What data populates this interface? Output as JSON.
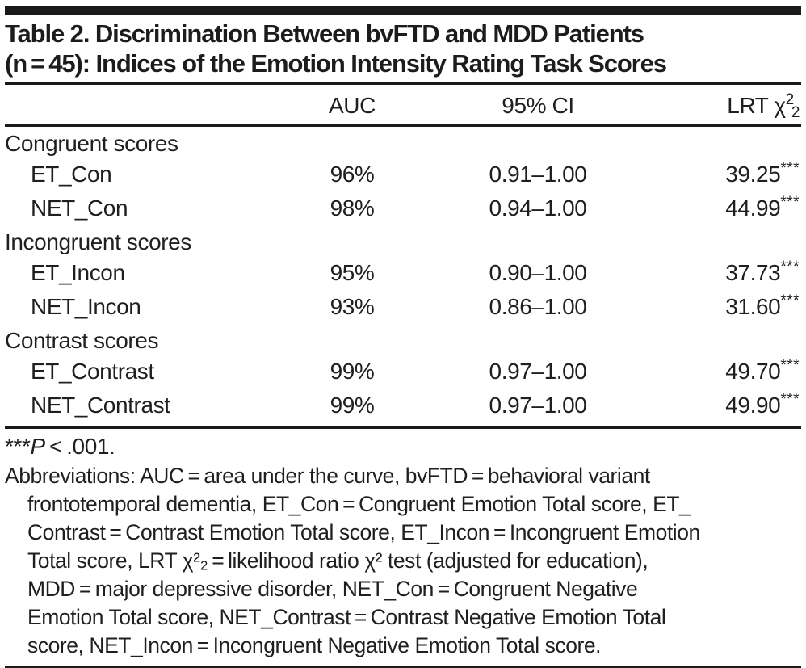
{
  "colors": {
    "text": "#1f1f1f",
    "rule": "#1a1a1a",
    "background": "#ffffff"
  },
  "title": {
    "line1": "Table 2. Discrimination Between bvFTD and MDD Patients",
    "line2": "(n = 45): Indices of the Emotion Intensity Rating Task Scores"
  },
  "table": {
    "headers": {
      "stub": "",
      "auc": "AUC",
      "ci": "95% CI",
      "lrt_prefix": "LRT χ",
      "lrt_sup": "2",
      "lrt_sub": "2"
    },
    "sections": [
      {
        "label": "Congruent scores",
        "rows": [
          {
            "label": "ET_Con",
            "auc": "96%",
            "ci": "0.91–1.00",
            "lrt": "39.25",
            "stars": "***"
          },
          {
            "label": "NET_Con",
            "auc": "98%",
            "ci": "0.94–1.00",
            "lrt": "44.99",
            "stars": "***"
          }
        ]
      },
      {
        "label": "Incongruent scores",
        "rows": [
          {
            "label": "ET_Incon",
            "auc": "95%",
            "ci": "0.90–1.00",
            "lrt": "37.73",
            "stars": "***"
          },
          {
            "label": "NET_Incon",
            "auc": "93%",
            "ci": "0.86–1.00",
            "lrt": "31.60",
            "stars": "***"
          }
        ]
      },
      {
        "label": "Contrast scores",
        "rows": [
          {
            "label": "ET_Contrast",
            "auc": "99%",
            "ci": "0.97–1.00",
            "lrt": "49.70",
            "stars": "***"
          },
          {
            "label": "NET_Contrast",
            "auc": "99%",
            "ci": "0.97–1.00",
            "lrt": "49.90",
            "stars": "***"
          }
        ]
      }
    ]
  },
  "significance_note": {
    "stars": "***",
    "p": "P",
    "tail": " < .001."
  },
  "abbreviations": {
    "lines": [
      "Abbreviations: AUC = area under the curve, bvFTD = behavioral variant",
      "frontotemporal dementia, ET_Con = Congruent Emotion Total score, ET_",
      "Contrast = Contrast Emotion Total score, ET_Incon = Incongruent Emotion",
      "Total score, LRT χ²₂ = likelihood ratio χ² test (adjusted for education),",
      "MDD = major depressive disorder, NET_Con = Congruent Negative",
      "Emotion Total score, NET_Contrast = Contrast Negative Emotion Total",
      "score, NET_Incon = Incongruent Negative Emotion Total score."
    ]
  }
}
